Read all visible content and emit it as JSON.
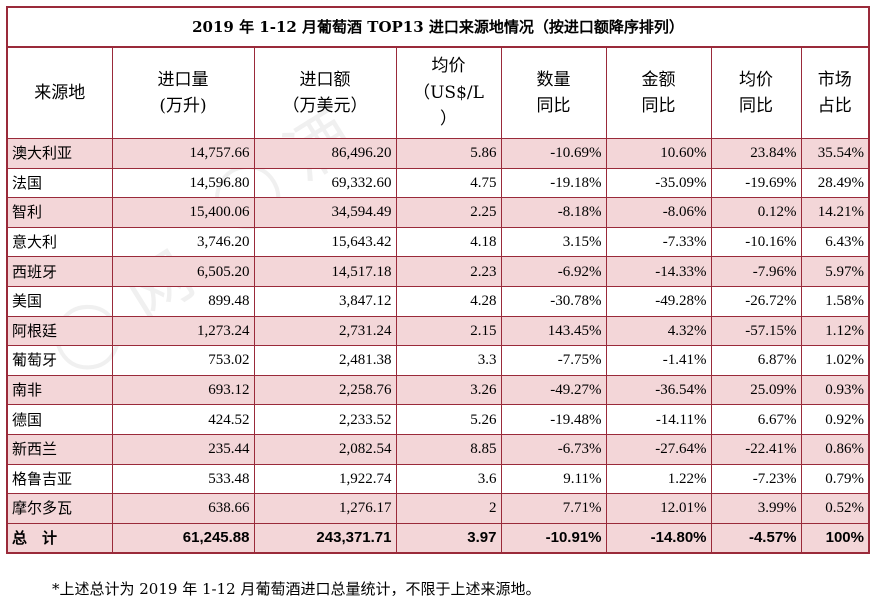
{
  "title": "2019 年 1-12 月葡萄酒 TOP13 进口来源地情况（按进口额降序排列）",
  "headers": [
    {
      "l1": "来源地",
      "l2": "",
      "l3": ""
    },
    {
      "l1": "进口量",
      "l2": "(万升)",
      "l3": ""
    },
    {
      "l1": "进口额",
      "l2": "（万美元）",
      "l3": ""
    },
    {
      "l1": "均价",
      "l2": "（US$/L",
      "l3": "）"
    },
    {
      "l1": "数量",
      "l2": "同比",
      "l3": ""
    },
    {
      "l1": "金额",
      "l2": "同比",
      "l3": ""
    },
    {
      "l1": "均价",
      "l2": "同比",
      "l3": ""
    },
    {
      "l1": "市场",
      "l2": "占比",
      "l3": ""
    }
  ],
  "rows": [
    {
      "c0": "澳大利亚",
      "c1": "14,757.66",
      "c2": "86,496.20",
      "c3": "5.86",
      "c4": "-10.69%",
      "c5": "10.60%",
      "c6": "23.84%",
      "c7": "35.54%"
    },
    {
      "c0": "法国",
      "c1": "14,596.80",
      "c2": "69,332.60",
      "c3": "4.75",
      "c4": "-19.18%",
      "c5": "-35.09%",
      "c6": "-19.69%",
      "c7": "28.49%"
    },
    {
      "c0": "智利",
      "c1": "15,400.06",
      "c2": "34,594.49",
      "c3": "2.25",
      "c4": "-8.18%",
      "c5": "-8.06%",
      "c6": "0.12%",
      "c7": "14.21%"
    },
    {
      "c0": "意大利",
      "c1": "3,746.20",
      "c2": "15,643.42",
      "c3": "4.18",
      "c4": "3.15%",
      "c5": "-7.33%",
      "c6": "-10.16%",
      "c7": "6.43%"
    },
    {
      "c0": "西班牙",
      "c1": "6,505.20",
      "c2": "14,517.18",
      "c3": "2.23",
      "c4": "-6.92%",
      "c5": "-14.33%",
      "c6": "-7.96%",
      "c7": "5.97%"
    },
    {
      "c0": "美国",
      "c1": "899.48",
      "c2": "3,847.12",
      "c3": "4.28",
      "c4": "-30.78%",
      "c5": "-49.28%",
      "c6": "-26.72%",
      "c7": "1.58%"
    },
    {
      "c0": "阿根廷",
      "c1": "1,273.24",
      "c2": "2,731.24",
      "c3": "2.15",
      "c4": "143.45%",
      "c5": "4.32%",
      "c6": "-57.15%",
      "c7": "1.12%"
    },
    {
      "c0": "葡萄牙",
      "c1": "753.02",
      "c2": "2,481.38",
      "c3": "3.3",
      "c4": "-7.75%",
      "c5": "-1.41%",
      "c6": "6.87%",
      "c7": "1.02%"
    },
    {
      "c0": "南非",
      "c1": "693.12",
      "c2": "2,258.76",
      "c3": "3.26",
      "c4": "-49.27%",
      "c5": "-36.54%",
      "c6": "25.09%",
      "c7": "0.93%"
    },
    {
      "c0": "德国",
      "c1": "424.52",
      "c2": "2,233.52",
      "c3": "5.26",
      "c4": "-19.48%",
      "c5": "-14.11%",
      "c6": "6.67%",
      "c7": "0.92%"
    },
    {
      "c0": "新西兰",
      "c1": "235.44",
      "c2": "2,082.54",
      "c3": "8.85",
      "c4": "-6.73%",
      "c5": "-27.64%",
      "c6": "-22.41%",
      "c7": "0.86%"
    },
    {
      "c0": "格鲁吉亚",
      "c1": "533.48",
      "c2": "1,922.74",
      "c3": "3.6",
      "c4": "9.11%",
      "c5": "1.22%",
      "c6": "-7.23%",
      "c7": "0.79%"
    },
    {
      "c0": "摩尔多瓦",
      "c1": "638.66",
      "c2": "1,276.17",
      "c3": "2",
      "c4": "7.71%",
      "c5": "12.01%",
      "c6": "3.99%",
      "c7": "0.52%"
    }
  ],
  "total": {
    "c0": "总　计",
    "c1": "61,245.88",
    "c2": "243,371.71",
    "c3": "3.97",
    "c4": "-10.91%",
    "c5": "-14.80%",
    "c6": "-4.57%",
    "c7": "100%"
  },
  "footnote": "*上述总计为 2019 年 1-12 月葡萄酒进口总量统计，不限于上述来源地。",
  "colors": {
    "border": "#9a2a3a",
    "stripe": "#f3d6d8"
  }
}
